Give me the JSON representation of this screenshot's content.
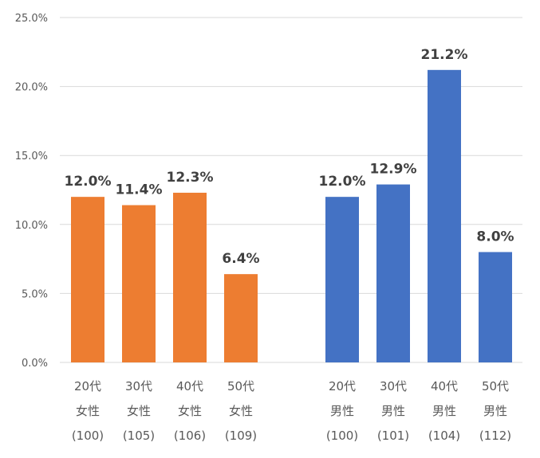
{
  "chart_data": {
    "type": "bar",
    "title": "",
    "xlabel": "",
    "ylabel": "",
    "ylim": [
      0,
      25
    ],
    "yticks": [
      "0.0%",
      "5.0%",
      "10.0%",
      "15.0%",
      "20.0%",
      "25.0%"
    ],
    "grid": true,
    "legend": "none",
    "groups": [
      {
        "color": "#ED7D31",
        "bars": [
          {
            "value": 12.0,
            "label": "12.0%",
            "category": [
              "20代",
              "女性",
              "(100)"
            ]
          },
          {
            "value": 11.4,
            "label": "11.4%",
            "category": [
              "30代",
              "女性",
              "(105)"
            ]
          },
          {
            "value": 12.3,
            "label": "12.3%",
            "category": [
              "40代",
              "女性",
              "(106)"
            ]
          },
          {
            "value": 6.4,
            "label": "6.4%",
            "category": [
              "50代",
              "女性",
              "(109)"
            ]
          }
        ]
      },
      {
        "color": "#4472C4",
        "bars": [
          {
            "value": 12.0,
            "label": "12.0%",
            "category": [
              "20代",
              "男性",
              "(100)"
            ]
          },
          {
            "value": 12.9,
            "label": "12.9%",
            "category": [
              "30代",
              "男性",
              "(101)"
            ]
          },
          {
            "value": 21.2,
            "label": "21.2%",
            "category": [
              "40代",
              "男性",
              "(104)"
            ]
          },
          {
            "value": 8.0,
            "label": "8.0%",
            "category": [
              "50代",
              "男性",
              "(112)"
            ]
          }
        ]
      }
    ]
  }
}
